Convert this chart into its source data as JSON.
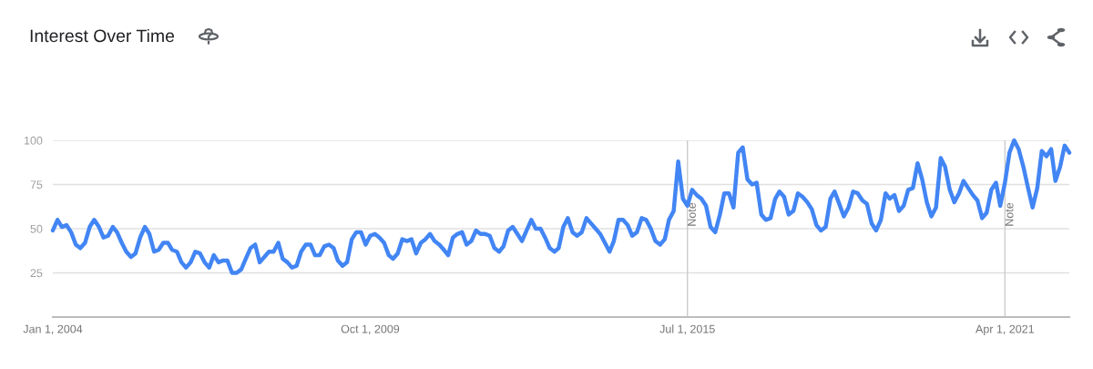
{
  "chart_data": {
    "type": "line",
    "title": "Interest Over Time",
    "x": [
      "2004-01",
      "2004-02",
      "2004-03",
      "2004-04",
      "2004-05",
      "2004-06",
      "2004-07",
      "2004-08",
      "2004-09",
      "2004-10",
      "2004-11",
      "2004-12",
      "2005-01",
      "2005-02",
      "2005-03",
      "2005-04",
      "2005-05",
      "2005-06",
      "2005-07",
      "2005-08",
      "2005-09",
      "2005-10",
      "2005-11",
      "2005-12",
      "2006-01",
      "2006-02",
      "2006-03",
      "2006-04",
      "2006-05",
      "2006-06",
      "2006-07",
      "2006-08",
      "2006-09",
      "2006-10",
      "2006-11",
      "2006-12",
      "2007-01",
      "2007-02",
      "2007-03",
      "2007-04",
      "2007-05",
      "2007-06",
      "2007-07",
      "2007-08",
      "2007-09",
      "2007-10",
      "2007-11",
      "2007-12",
      "2008-01",
      "2008-02",
      "2008-03",
      "2008-04",
      "2008-05",
      "2008-06",
      "2008-07",
      "2008-08",
      "2008-09",
      "2008-10",
      "2008-11",
      "2008-12",
      "2009-01",
      "2009-02",
      "2009-03",
      "2009-04",
      "2009-05",
      "2009-06",
      "2009-07",
      "2009-08",
      "2009-09",
      "2009-10",
      "2009-11",
      "2009-12",
      "2010-01",
      "2010-02",
      "2010-03",
      "2010-04",
      "2010-05",
      "2010-06",
      "2010-07",
      "2010-08",
      "2010-09",
      "2010-10",
      "2010-11",
      "2010-12",
      "2011-01",
      "2011-02",
      "2011-03",
      "2011-04",
      "2011-05",
      "2011-06",
      "2011-07",
      "2011-08",
      "2011-09",
      "2011-10",
      "2011-11",
      "2011-12",
      "2012-01",
      "2012-02",
      "2012-03",
      "2012-04",
      "2012-05",
      "2012-06",
      "2012-07",
      "2012-08",
      "2012-09",
      "2012-10",
      "2012-11",
      "2012-12",
      "2013-01",
      "2013-02",
      "2013-03",
      "2013-04",
      "2013-05",
      "2013-06",
      "2013-07",
      "2013-08",
      "2013-09",
      "2013-10",
      "2013-11",
      "2013-12",
      "2014-01",
      "2014-02",
      "2014-03",
      "2014-04",
      "2014-05",
      "2014-06",
      "2014-07",
      "2014-08",
      "2014-09",
      "2014-10",
      "2014-11",
      "2014-12",
      "2015-01",
      "2015-02",
      "2015-03",
      "2015-04",
      "2015-05",
      "2015-06",
      "2015-07",
      "2015-08",
      "2015-09",
      "2015-10",
      "2015-11",
      "2015-12",
      "2016-01",
      "2016-02",
      "2016-03",
      "2016-04",
      "2016-05",
      "2016-06",
      "2016-07",
      "2016-08",
      "2016-09",
      "2016-10",
      "2016-11",
      "2016-12",
      "2017-01",
      "2017-02",
      "2017-03",
      "2017-04",
      "2017-05",
      "2017-06",
      "2017-07",
      "2017-08",
      "2017-09",
      "2017-10",
      "2017-11",
      "2017-12",
      "2018-01",
      "2018-02",
      "2018-03",
      "2018-04",
      "2018-05",
      "2018-06",
      "2018-07",
      "2018-08",
      "2018-09",
      "2018-10",
      "2018-11",
      "2018-12",
      "2019-01",
      "2019-02",
      "2019-03",
      "2019-04",
      "2019-05",
      "2019-06",
      "2019-07",
      "2019-08",
      "2019-09",
      "2019-10",
      "2019-11",
      "2019-12",
      "2020-01",
      "2020-02",
      "2020-03",
      "2020-04",
      "2020-05",
      "2020-06",
      "2020-07",
      "2020-08",
      "2020-09",
      "2020-10",
      "2020-11",
      "2020-12",
      "2021-01",
      "2021-02",
      "2021-03",
      "2021-04",
      "2021-05",
      "2021-06",
      "2021-07",
      "2021-08",
      "2021-09",
      "2021-10",
      "2021-11",
      "2021-12",
      "2022-01",
      "2022-02",
      "2022-03",
      "2022-04",
      "2022-05",
      "2022-06"
    ],
    "series": [
      {
        "color": "#4285f4",
        "values": [
          49,
          55,
          51,
          52,
          48,
          41,
          39,
          42,
          51,
          55,
          51,
          45,
          46,
          51,
          48,
          42,
          37,
          34,
          36,
          45,
          51,
          47,
          37,
          38,
          42,
          42,
          38,
          37,
          31,
          28,
          31,
          37,
          36,
          31,
          28,
          35,
          31,
          32,
          32,
          25,
          25,
          27,
          33,
          39,
          41,
          31,
          34,
          37,
          37,
          42,
          33,
          31,
          28,
          29,
          37,
          41,
          41,
          35,
          35,
          40,
          41,
          39,
          32,
          29,
          31,
          44,
          48,
          48,
          41,
          46,
          47,
          45,
          42,
          35,
          33,
          36,
          44,
          43,
          44,
          36,
          42,
          44,
          47,
          43,
          41,
          38,
          35,
          45,
          47,
          48,
          41,
          43,
          49,
          47,
          47,
          46,
          39,
          37,
          40,
          49,
          51,
          47,
          43,
          49,
          55,
          50,
          50,
          45,
          39,
          37,
          39,
          51,
          56,
          48,
          46,
          48,
          56,
          53,
          50,
          47,
          42,
          37,
          43,
          55,
          55,
          52,
          46,
          48,
          56,
          55,
          50,
          43,
          41,
          44,
          55,
          60,
          88,
          67,
          63,
          72,
          69,
          67,
          63,
          51,
          48,
          58,
          70,
          70,
          62,
          93,
          96,
          78,
          75,
          76,
          58,
          55,
          56,
          67,
          71,
          68,
          58,
          60,
          70,
          68,
          65,
          61,
          52,
          49,
          51,
          67,
          71,
          64,
          57,
          62,
          71,
          70,
          66,
          64,
          53,
          49,
          55,
          70,
          67,
          69,
          60,
          63,
          72,
          73,
          87,
          78,
          65,
          57,
          62,
          90,
          85,
          72,
          65,
          70,
          77,
          73,
          69,
          66,
          56,
          59,
          72,
          76,
          63,
          76,
          93,
          100,
          95,
          85,
          73,
          62,
          73,
          94,
          91,
          95,
          77,
          85,
          97,
          93
        ]
      }
    ],
    "xlim": [
      "2004-01-01",
      "2022-06-01"
    ],
    "xticks": [
      {
        "value": "2004-01-01",
        "label": "Jan 1, 2004"
      },
      {
        "value": "2009-10-01",
        "label": "Oct 1, 2009"
      },
      {
        "value": "2015-07-01",
        "label": "Jul 1, 2015"
      },
      {
        "value": "2021-04-01",
        "label": "Apr 1, 2021"
      }
    ],
    "ylim": [
      0,
      100
    ],
    "yticks": [
      25,
      50,
      75,
      100
    ],
    "grid": "y",
    "marker": "none",
    "line_style": "solid",
    "ref_lines": [
      {
        "axis": "x",
        "value": "2015-07-01",
        "label": "Note",
        "color": "#cccccc"
      },
      {
        "axis": "x",
        "value": "2021-04-01",
        "label": "Note",
        "color": "#cccccc"
      }
    ]
  }
}
